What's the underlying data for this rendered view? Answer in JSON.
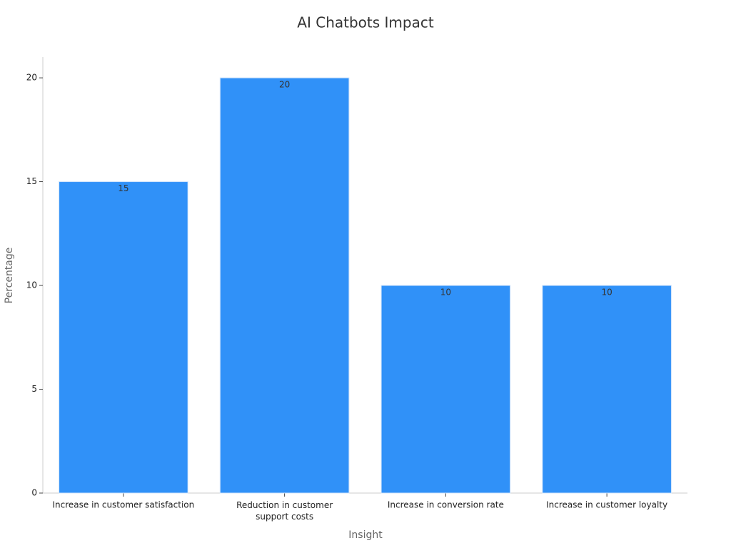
{
  "chart_data": {
    "type": "bar",
    "title": "AI Chatbots Impact",
    "x_label": "Insight",
    "y_label": "Percentage",
    "categories": [
      "Increase in customer satisfaction",
      "Reduction in customer support costs",
      "Increase in conversion rate",
      "Increase in customer loyalty"
    ],
    "values": [
      15,
      20,
      10,
      10
    ],
    "color": "#3091f8",
    "ylim": [
      0,
      21
    ],
    "yticks": [
      0,
      5,
      10,
      15,
      20
    ],
    "grid": false
  }
}
